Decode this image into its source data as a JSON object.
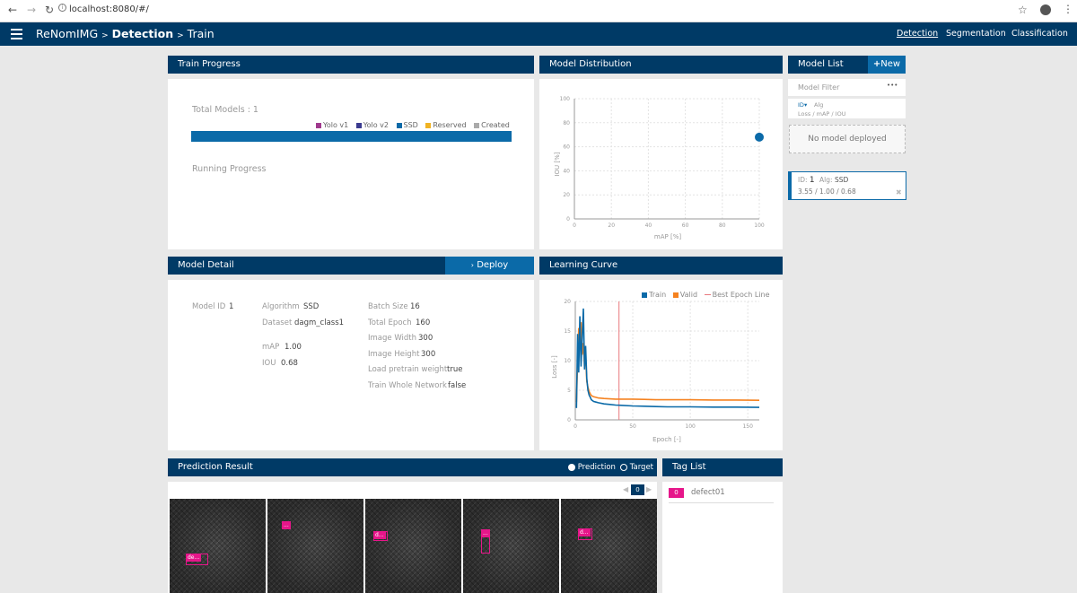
{
  "browser": {
    "url": "localhost:8080/#/"
  },
  "header": {
    "app_name": "ReNomIMG",
    "sep1": ">",
    "section": "Detection",
    "sep2": ">",
    "page": "Train",
    "nav": [
      "Detection",
      "Segmentation",
      "Classification"
    ]
  },
  "train_progress": {
    "title": "Train Progress",
    "total_models": "Total Models : 1",
    "legend": [
      {
        "label": "Yolo v1",
        "color": "#a03a8e"
      },
      {
        "label": "Yolo v2",
        "color": "#3b3b8f"
      },
      {
        "label": "SSD",
        "color": "#0b6aa8"
      },
      {
        "label": "Reserved",
        "color": "#f0b323"
      },
      {
        "label": "Created",
        "color": "#aaaaaa"
      }
    ],
    "bar_fraction": 1.0,
    "running_progress": "Running Progress"
  },
  "model_distribution": {
    "title": "Model Distribution",
    "ylabel": "IOU [%]",
    "xlabel": "mAP [%]",
    "yticks": [
      "100",
      "80",
      "60",
      "40",
      "20",
      "0"
    ],
    "xticks": [
      "0",
      "20",
      "40",
      "60",
      "80",
      "100"
    ]
  },
  "model_list": {
    "title": "Model List",
    "new_label": "New",
    "filter_label": "Model Filter",
    "filter_menu": "•••",
    "sort_id": "ID",
    "sort_alg": "Alg",
    "sort_loss": "Loss",
    "sort_sep1": "/",
    "sort_map": "mAP",
    "sort_sep2": "/",
    "sort_iou": "IOU",
    "no_model": "No model deployed",
    "items": [
      {
        "id_label": "ID:",
        "id": "1",
        "alg_label": "Alg:",
        "alg": "SSD",
        "loss": "3.55",
        "sep1": "/",
        "map": "1.00",
        "sep2": "/",
        "iou": "0.68"
      }
    ]
  },
  "model_detail": {
    "title": "Model Detail",
    "deploy_label": "Deploy",
    "model_id_label": "Model ID",
    "model_id": "1",
    "algorithm_label": "Algorithm",
    "algorithm": "SSD",
    "dataset_label": "Dataset",
    "dataset": "dagm_class1",
    "map_label": "mAP",
    "map": "1.00",
    "iou_label": "IOU",
    "iou": "0.68",
    "batch_size_label": "Batch Size",
    "batch_size": "16",
    "total_epoch_label": "Total Epoch",
    "total_epoch": "160",
    "image_width_label": "Image Width",
    "image_width": "300",
    "image_height_label": "Image Height",
    "image_height": "300",
    "load_pretrain_label": "Load pretrain weight",
    "load_pretrain": "true",
    "train_whole_label": "Train Whole Network",
    "train_whole": "false"
  },
  "learning_curve": {
    "title": "Learning Curve",
    "legend_train": "Train",
    "legend_valid": "Valid",
    "legend_best": "Best Epoch Line",
    "ylabel": "Loss [-]",
    "xlabel": "Epoch [-]",
    "yticks": [
      "20",
      "15",
      "10",
      "5",
      "0"
    ],
    "xticks": [
      "0",
      "50",
      "100",
      "150"
    ]
  },
  "prediction": {
    "title": "Prediction Result",
    "option_prediction": "Prediction",
    "option_target": "Target",
    "page": "0",
    "boxes": [
      "de...",
      "...",
      "d...",
      "...",
      "d..."
    ]
  },
  "tag_list": {
    "title": "Tag List",
    "tags": [
      {
        "id": "0",
        "name": "defect01"
      }
    ]
  },
  "colors": {
    "header": "#003a66",
    "accent": "#0b6aa8",
    "train": "#0b6aa8",
    "valid": "#f58220",
    "best": "#e9797e",
    "tag": "#e6168a"
  },
  "chart_data": [
    {
      "type": "scatter",
      "title": "Model Distribution",
      "xlabel": "mAP [%]",
      "ylabel": "IOU [%]",
      "xlim": [
        0,
        100
      ],
      "ylim": [
        0,
        100
      ],
      "series": [
        {
          "name": "SSD",
          "points": [
            [
              100,
              68
            ]
          ]
        }
      ]
    },
    {
      "type": "line",
      "title": "Learning Curve",
      "xlabel": "Epoch [-]",
      "ylabel": "Loss [-]",
      "xlim": [
        0,
        160
      ],
      "ylim": [
        0,
        20
      ],
      "best_epoch": 38,
      "series": [
        {
          "name": "Train",
          "x": [
            1,
            2,
            3,
            4,
            5,
            6,
            7,
            8,
            9,
            10,
            11,
            12,
            13,
            14,
            16,
            18,
            20,
            25,
            30,
            35,
            40,
            50,
            60,
            70,
            80,
            100,
            120,
            140,
            160
          ],
          "y": [
            2.0,
            14.5,
            8.0,
            17.5,
            9.0,
            14.0,
            18.8,
            8.5,
            12.5,
            7.0,
            5.0,
            4.2,
            3.8,
            3.4,
            3.1,
            3.0,
            2.9,
            2.7,
            2.6,
            2.5,
            2.45,
            2.35,
            2.3,
            2.25,
            2.2,
            2.2,
            2.15,
            2.15,
            2.1
          ]
        },
        {
          "name": "Valid",
          "x": [
            1,
            2,
            3,
            4,
            5,
            6,
            7,
            8,
            9,
            10,
            11,
            12,
            13,
            14,
            16,
            18,
            20,
            25,
            30,
            35,
            40,
            50,
            60,
            70,
            80,
            100,
            120,
            140,
            160
          ],
          "y": [
            3.0,
            10.0,
            15.5,
            12.0,
            16.5,
            11.0,
            13.0,
            9.0,
            11.0,
            6.5,
            5.5,
            4.8,
            4.4,
            4.1,
            3.9,
            3.8,
            3.7,
            3.6,
            3.55,
            3.5,
            3.5,
            3.5,
            3.45,
            3.4,
            3.4,
            3.4,
            3.35,
            3.35,
            3.3
          ]
        }
      ]
    }
  ]
}
